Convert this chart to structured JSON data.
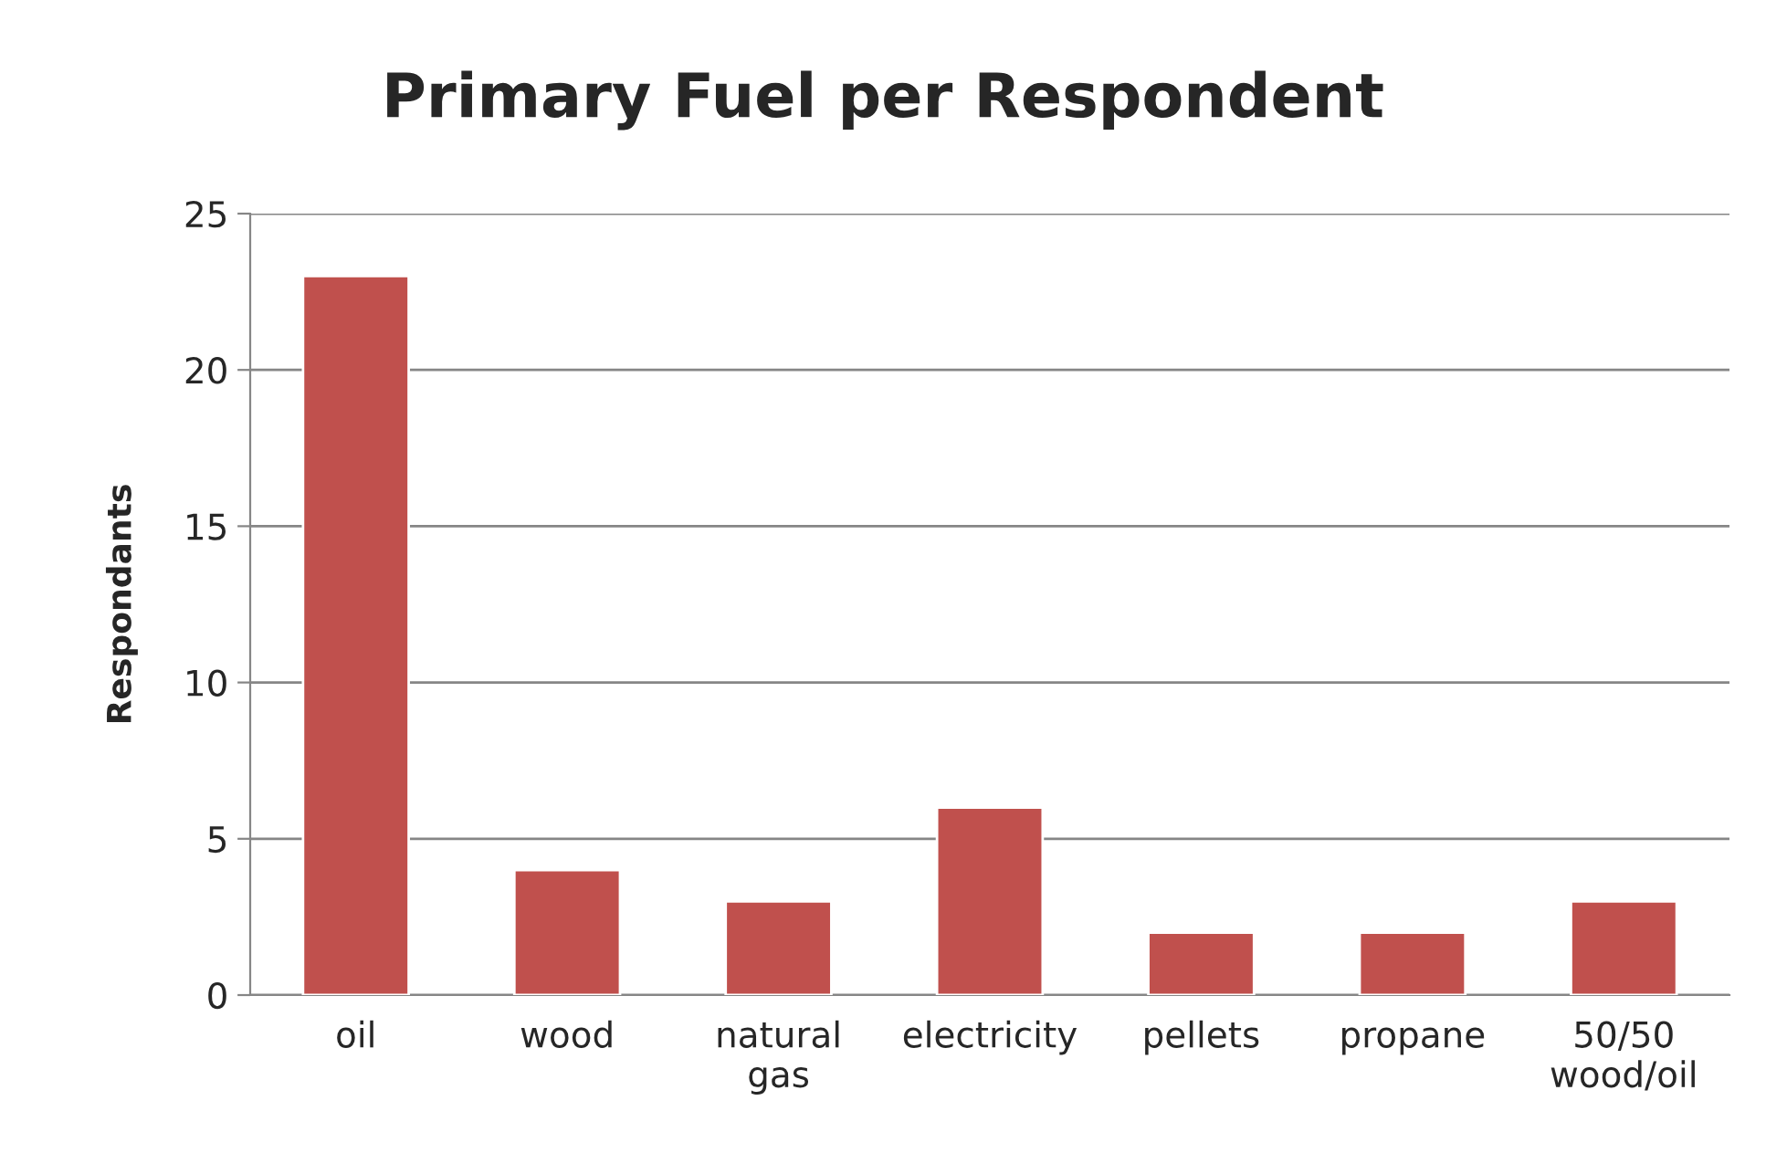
{
  "chart_data": {
    "type": "bar",
    "title": "Primary Fuel per Respondent",
    "ylabel": "Respondants",
    "categories": [
      "oil",
      "wood",
      "natural\ngas",
      "electricity",
      "pellets",
      "propane",
      "50/50\nwood/oil"
    ],
    "values": [
      23,
      4,
      3,
      6,
      2,
      2,
      3
    ],
    "color": "#c0504d",
    "ylim": [
      0,
      25
    ],
    "yticks": [
      0,
      5,
      10,
      15,
      20,
      25
    ],
    "grid": "y",
    "legend": false
  }
}
